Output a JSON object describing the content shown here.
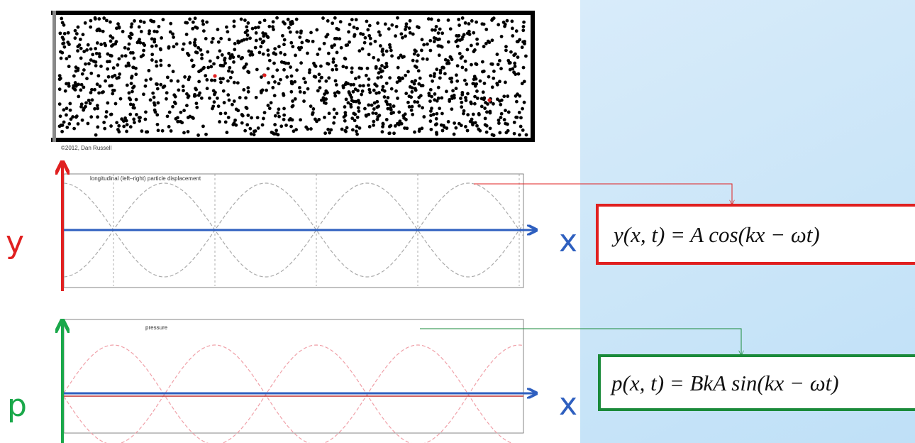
{
  "header": {
    "credit": "©2012, Dan Russell"
  },
  "displacement_panel": {
    "title": "longitudinal (left–right) particle displacement",
    "axis_y": "y",
    "axis_x": "x",
    "equation": "y(x, t) = A cos(kx − ωt)"
  },
  "pressure_panel": {
    "title": "pressure",
    "axis_y": "p",
    "axis_x": "x",
    "equation": "p(x, t) = BkA sin(kx − ωt)"
  }
}
